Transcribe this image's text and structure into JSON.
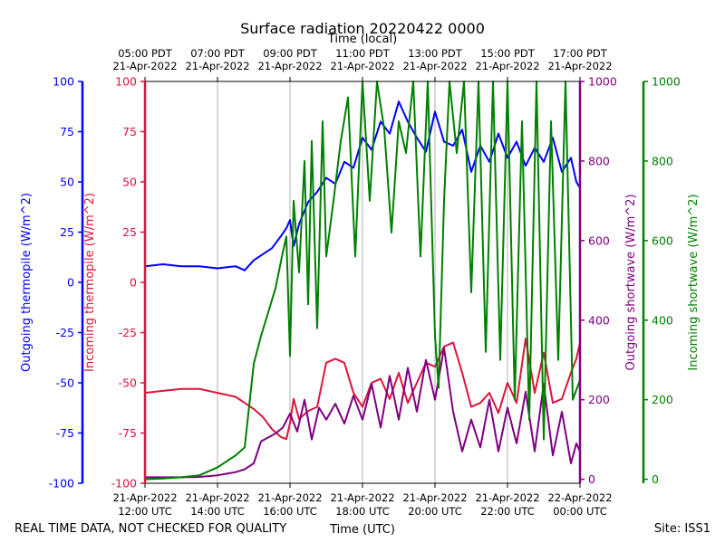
{
  "chart_data": {
    "type": "line",
    "title": "Surface radiation 20220422 0000",
    "top_axis_label": "Time (local)",
    "bottom_axis_label": "Time (UTC)",
    "footer_left": "REAL TIME DATA, NOT CHECKED FOR QUALITY",
    "footer_right": "Site: ISS1",
    "x_range_hours_utc": [
      12.0,
      24.0
    ],
    "x_ticks": [
      {
        "hour": 12,
        "utc": [
          "21-Apr-2022",
          "12:00 UTC"
        ],
        "local": [
          "05:00 PDT",
          "21-Apr-2022"
        ]
      },
      {
        "hour": 14,
        "utc": [
          "21-Apr-2022",
          "14:00 UTC"
        ],
        "local": [
          "07:00 PDT",
          "21-Apr-2022"
        ]
      },
      {
        "hour": 16,
        "utc": [
          "21-Apr-2022",
          "16:00 UTC"
        ],
        "local": [
          "09:00 PDT",
          "21-Apr-2022"
        ]
      },
      {
        "hour": 18,
        "utc": [
          "21-Apr-2022",
          "18:00 UTC"
        ],
        "local": [
          "11:00 PDT",
          "21-Apr-2022"
        ]
      },
      {
        "hour": 20,
        "utc": [
          "21-Apr-2022",
          "20:00 UTC"
        ],
        "local": [
          "13:00 PDT",
          "21-Apr-2022"
        ]
      },
      {
        "hour": 22,
        "utc": [
          "21-Apr-2022",
          "22:00 UTC"
        ],
        "local": [
          "15:00 PDT",
          "21-Apr-2022"
        ]
      },
      {
        "hour": 24,
        "utc": [
          "22-Apr-2022",
          "00:00 UTC"
        ],
        "local": [
          "17:00 PDT",
          "21-Apr-2022"
        ]
      }
    ],
    "axes": [
      {
        "id": "out_thermo",
        "label": "Outgoing thermopile (W/m^2)",
        "color": "#0000ff",
        "ylim": [
          -100,
          100
        ],
        "ticks": [
          -100,
          -75,
          -50,
          -25,
          0,
          25,
          50,
          75,
          100
        ]
      },
      {
        "id": "in_thermo",
        "label": "Incoming thermopile (W/m^2)",
        "color": "#dc143c",
        "ylim": [
          -100,
          100
        ],
        "ticks": [
          -100,
          -75,
          -50,
          -25,
          0,
          25,
          50,
          75,
          100
        ]
      },
      {
        "id": "out_sw",
        "label": "Outgoing shortwave (W/m^2)",
        "color": "#800080",
        "ylim": [
          -10,
          1000
        ],
        "ticks": [
          0,
          200,
          400,
          600,
          800,
          1000
        ]
      },
      {
        "id": "in_sw",
        "label": "Incoming shortwave (W/m^2)",
        "color": "#008000",
        "ylim": [
          -10,
          1000
        ],
        "ticks": [
          0,
          200,
          400,
          600,
          800,
          1000
        ]
      }
    ],
    "series": [
      {
        "name": "Outgoing thermopile",
        "axis": "out_thermo",
        "color": "#0000ff",
        "x": [
          12.0,
          12.5,
          13.0,
          13.5,
          14.0,
          14.5,
          14.75,
          15.0,
          15.25,
          15.5,
          15.75,
          15.9,
          16.0,
          16.1,
          16.25,
          16.5,
          16.75,
          17.0,
          17.25,
          17.5,
          17.75,
          18.0,
          18.25,
          18.5,
          18.75,
          19.0,
          19.25,
          19.5,
          19.75,
          20.0,
          20.25,
          20.5,
          20.75,
          21.0,
          21.25,
          21.5,
          21.75,
          22.0,
          22.25,
          22.5,
          22.75,
          23.0,
          23.25,
          23.5,
          23.75,
          23.9,
          24.0
        ],
        "y": [
          8,
          9,
          8,
          8,
          7,
          8,
          6,
          11,
          14,
          17,
          23,
          27,
          31,
          18,
          29,
          40,
          45,
          52,
          49,
          60,
          57,
          72,
          66,
          80,
          74,
          90,
          80,
          72,
          65,
          85,
          70,
          68,
          76,
          55,
          68,
          60,
          74,
          62,
          70,
          58,
          67,
          60,
          72,
          55,
          62,
          50,
          47
        ]
      },
      {
        "name": "Incoming thermopile",
        "axis": "in_thermo",
        "color": "#dc143c",
        "x": [
          12.0,
          12.5,
          13.0,
          13.5,
          14.0,
          14.5,
          14.75,
          15.0,
          15.25,
          15.5,
          15.75,
          15.9,
          16.0,
          16.1,
          16.25,
          16.5,
          16.75,
          17.0,
          17.25,
          17.5,
          17.75,
          18.0,
          18.25,
          18.5,
          18.75,
          19.0,
          19.25,
          19.5,
          19.75,
          20.0,
          20.25,
          20.5,
          20.75,
          21.0,
          21.25,
          21.5,
          21.75,
          22.0,
          22.25,
          22.5,
          22.75,
          23.0,
          23.25,
          23.5,
          23.75,
          23.9,
          24.0
        ],
        "y": [
          -55,
          -54,
          -53,
          -53,
          -55,
          -57,
          -60,
          -63,
          -67,
          -73,
          -77,
          -78,
          -70,
          -58,
          -68,
          -64,
          -62,
          -40,
          -38,
          -40,
          -55,
          -62,
          -50,
          -48,
          -58,
          -45,
          -60,
          -50,
          -40,
          -42,
          -32,
          -30,
          -45,
          -62,
          -60,
          -55,
          -65,
          -50,
          -60,
          -28,
          -55,
          -35,
          -60,
          -58,
          -45,
          -38,
          -30
        ]
      },
      {
        "name": "Outgoing shortwave",
        "axis": "out_sw",
        "color": "#800080",
        "x": [
          12.0,
          12.5,
          13.0,
          13.5,
          14.0,
          14.5,
          14.75,
          15.0,
          15.2,
          15.4,
          15.6,
          15.8,
          16.0,
          16.2,
          16.4,
          16.6,
          16.8,
          17.0,
          17.25,
          17.5,
          17.75,
          18.0,
          18.25,
          18.5,
          18.75,
          19.0,
          19.25,
          19.5,
          19.75,
          20.0,
          20.25,
          20.5,
          20.75,
          21.0,
          21.25,
          21.5,
          21.75,
          22.0,
          22.25,
          22.5,
          22.75,
          23.0,
          23.25,
          23.5,
          23.75,
          23.9,
          24.0
        ],
        "y": [
          5,
          5,
          5,
          6,
          10,
          18,
          25,
          40,
          95,
          105,
          115,
          130,
          165,
          120,
          200,
          100,
          180,
          150,
          190,
          140,
          210,
          150,
          240,
          130,
          260,
          150,
          280,
          170,
          300,
          200,
          330,
          170,
          70,
          150,
          80,
          200,
          70,
          180,
          90,
          220,
          70,
          240,
          60,
          170,
          40,
          90,
          70
        ]
      },
      {
        "name": "Incoming shortwave",
        "axis": "in_sw",
        "color": "#008000",
        "x": [
          12.0,
          12.5,
          13.0,
          13.5,
          14.0,
          14.5,
          14.75,
          15.0,
          15.2,
          15.4,
          15.6,
          15.8,
          15.9,
          16.0,
          16.1,
          16.25,
          16.4,
          16.5,
          16.6,
          16.75,
          16.9,
          17.0,
          17.2,
          17.4,
          17.6,
          17.8,
          18.0,
          18.2,
          18.4,
          18.6,
          18.8,
          19.0,
          19.2,
          19.4,
          19.6,
          19.8,
          20.0,
          20.1,
          20.25,
          20.4,
          20.6,
          20.8,
          21.0,
          21.2,
          21.4,
          21.6,
          21.8,
          22.0,
          22.2,
          22.4,
          22.6,
          22.8,
          23.0,
          23.2,
          23.4,
          23.6,
          23.8,
          24.0
        ],
        "y": [
          0,
          2,
          5,
          10,
          30,
          60,
          80,
          290,
          360,
          420,
          480,
          570,
          610,
          310,
          700,
          520,
          800,
          440,
          850,
          380,
          900,
          560,
          700,
          850,
          960,
          560,
          1000,
          700,
          1000,
          880,
          620,
          900,
          820,
          1000,
          560,
          1000,
          360,
          230,
          700,
          1000,
          820,
          1000,
          470,
          1000,
          320,
          1000,
          300,
          1000,
          200,
          900,
          150,
          1000,
          100,
          900,
          300,
          1000,
          200,
          250
        ]
      }
    ]
  }
}
